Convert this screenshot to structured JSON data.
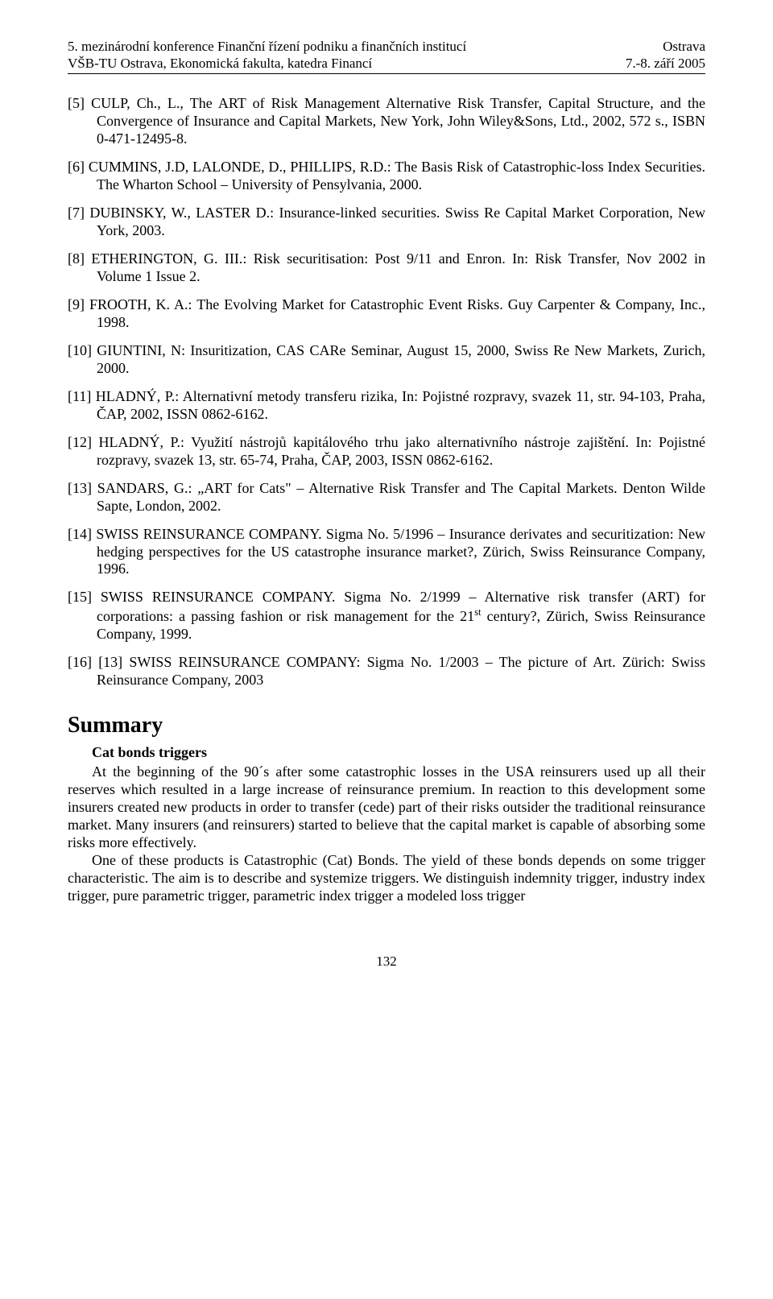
{
  "header": {
    "left1": "5. mezinárodní konference Finanční řízení podniku a finančních institucí",
    "left2": "VŠB-TU Ostrava, Ekonomická fakulta, katedra Financí",
    "right1": "Ostrava",
    "right2": "7.-8. září 2005"
  },
  "refs": [
    {
      "n": "[5]",
      "t": "CULP, Ch., L., The ART of Risk Management Alternative Risk Transfer, Capital Structure, and the Convergence of Insurance and Capital Markets, New York, John Wiley&Sons, Ltd., 2002, 572 s., ISBN 0-471-12495-8."
    },
    {
      "n": "[6]",
      "t": "CUMMINS, J.D, LALONDE, D., PHILLIPS, R.D.: The Basis Risk of Catastrophic-loss Index Securities. The Wharton School – University of Pensylvania, 2000."
    },
    {
      "n": "[7]",
      "t": "DUBINSKY, W., LASTER D.: Insurance-linked securities. Swiss Re Capital Market Corporation, New York, 2003."
    },
    {
      "n": "[8]",
      "t": "ETHERINGTON, G. III.: Risk securitisation: Post 9/11 and Enron. In: Risk Transfer, Nov 2002 in Volume 1 Issue 2."
    },
    {
      "n": "[9]",
      "t": "FROOTH, K. A.: The Evolving Market for Catastrophic Event Risks. Guy Carpenter & Company, Inc., 1998."
    },
    {
      "n": "[10]",
      "t": "GIUNTINI, N: Insuritization, CAS CARe Seminar, August 15, 2000, Swiss Re New Markets, Zurich, 2000."
    },
    {
      "n": "[11]",
      "t": "HLADNÝ, P.: Alternativní metody transferu rizika, In: Pojistné rozpravy, svazek 11, str. 94-103, Praha, ČAP, 2002, ISSN 0862-6162."
    },
    {
      "n": "[12]",
      "t": "HLADNÝ, P.: Využití nástrojů kapitálového trhu jako alternativního nástroje zajištění. In: Pojistné rozpravy, svazek 13, str. 65-74, Praha, ČAP, 2003, ISSN 0862-6162."
    },
    {
      "n": "[13]",
      "t": "SANDARS, G.: „ART for Cats\" – Alternative Risk Transfer and The Capital Markets. Denton Wilde Sapte, London, 2002."
    },
    {
      "n": "[14]",
      "t": "SWISS REINSURANCE COMPANY. Sigma No. 5/1996 – Insurance derivates and securitization: New hedging perspectives for the US catastrophe insurance market?, Zürich, Swiss Reinsurance Company, 1996."
    },
    {
      "n": "[15]",
      "t": "SWISS REINSURANCE COMPANY. Sigma No. 2/1999 – Alternative risk transfer (ART) for corporations: a passing fashion or risk management for the 21<sup>st</sup> century?, Zürich, Swiss Reinsurance Company, 1999."
    },
    {
      "n": "[16]",
      "t": "[13] SWISS REINSURANCE COMPANY: Sigma No. 1/2003 – The picture of Art. Zürich: Swiss Reinsurance Company, 2003"
    }
  ],
  "summary": {
    "heading": "Summary",
    "subtitle": "Cat bonds triggers",
    "p1": "At the beginning of the 90´s after some catastrophic losses in the USA reinsurers used up all their reserves which resulted in a large increase of reinsurance premium. In reaction to this development some insurers created new products in order to transfer (cede) part of their risks outsider the traditional reinsurance market. Many insurers (and reinsurers) started to believe that the capital market is capable of absorbing some risks more effectively.",
    "p2": "One of these products is Catastrophic (Cat) Bonds. The yield of these bonds depends on some trigger characteristic. The aim is to describe and systemize triggers. We distinguish indemnity trigger, industry index trigger, pure parametric trigger, parametric index trigger a modeled loss trigger"
  },
  "page_number": "132"
}
